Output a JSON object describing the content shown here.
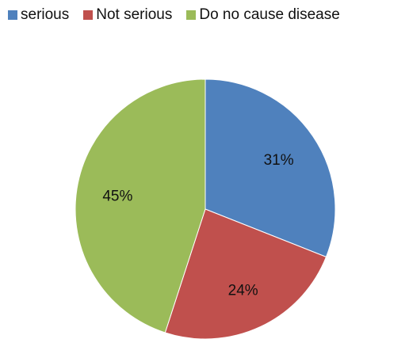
{
  "chart_data": {
    "type": "pie",
    "title": "",
    "categories": [
      "serious",
      "Not serious",
      "Do no cause disease"
    ],
    "values": [
      31,
      24,
      45
    ],
    "labels": [
      "31%",
      "24%",
      "45%"
    ],
    "colors": [
      "#4f81bd",
      "#c0504d",
      "#9bbb59"
    ],
    "legend_placement": "top",
    "start_angle_deg": 0,
    "direction": "clockwise"
  }
}
